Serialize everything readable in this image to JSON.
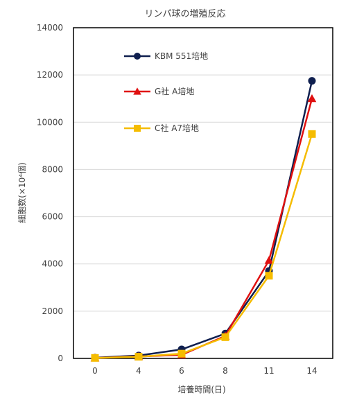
{
  "chart_data": {
    "type": "line",
    "title": "リンパ球の増殖反応",
    "xlabel": "培養時間(日)",
    "ylabel": "細胞数(×10⁴個)",
    "categories": [
      "0",
      "4",
      "6",
      "8",
      "11",
      "14"
    ],
    "ylim": [
      0,
      14000
    ],
    "yticks": [
      0,
      2000,
      4000,
      6000,
      8000,
      10000,
      12000,
      14000
    ],
    "grid": true,
    "legend_position": "top-left",
    "series": [
      {
        "name": "KBM 551培地",
        "color": "#0f1f4f",
        "marker": "circle",
        "values": [
          30,
          120,
          380,
          1050,
          3700,
          11750
        ]
      },
      {
        "name": "G社 A培地",
        "color": "#e01010",
        "marker": "triangle",
        "values": [
          20,
          80,
          150,
          950,
          4150,
          11000
        ]
      },
      {
        "name": "C社 A7培地",
        "color": "#f5bc00",
        "marker": "square",
        "values": [
          20,
          70,
          200,
          900,
          3500,
          9500
        ]
      }
    ]
  }
}
